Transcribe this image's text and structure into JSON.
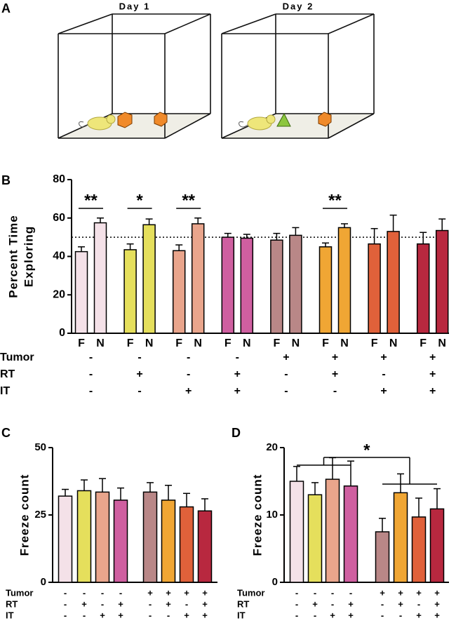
{
  "panel_labels": [
    "A",
    "B",
    "C",
    "D"
  ],
  "diagram": {
    "day_labels": [
      "Day 1",
      "Day 2"
    ]
  },
  "chart_data": [
    {
      "type": "bar",
      "ylabel": [
        "Percent Time",
        "Exploring"
      ],
      "categories": [
        "F",
        "N",
        "F",
        "N",
        "F",
        "N",
        "F",
        "N",
        "F",
        "N",
        "F",
        "N",
        "F",
        "N",
        "F",
        "N"
      ],
      "values": [
        42.5,
        57.5,
        43.5,
        56.5,
        43,
        57,
        50,
        49.5,
        48.5,
        51,
        45,
        55,
        46.5,
        53,
        46.5,
        53.5
      ],
      "errors": [
        2.5,
        2.5,
        3,
        3,
        3,
        3,
        2,
        2,
        3.5,
        4,
        2,
        2,
        8,
        8.5,
        6,
        6
      ],
      "colors": [
        "#f4e1e8",
        "#f4e1e8",
        "#e5df5c",
        "#e5df5c",
        "#e9a58c",
        "#e9a58c",
        "#cf5fa0",
        "#cf5fa0",
        "#b98787",
        "#b98787",
        "#f0a634",
        "#f0a634",
        "#e0613a",
        "#e0613a",
        "#b8283f",
        "#b8283f"
      ],
      "ylim": [
        0,
        80
      ],
      "yticks": [
        0,
        20,
        40,
        60,
        80
      ],
      "reference_line": 50,
      "annotations": [
        "**",
        "*",
        "**",
        null,
        null,
        "**",
        null,
        null
      ],
      "conditions": [
        {
          "name": "Tumor",
          "values": [
            "-",
            "-",
            "-",
            "-",
            "+",
            "+",
            "+",
            "+"
          ]
        },
        {
          "name": "RT",
          "values": [
            "-",
            "+",
            "-",
            "+",
            "-",
            "+",
            "-",
            "+"
          ]
        },
        {
          "name": "IT",
          "values": [
            "-",
            "-",
            "+",
            "+",
            "-",
            "-",
            "+",
            "+"
          ]
        }
      ]
    },
    {
      "type": "bar",
      "ylabel": [
        "Freeze count"
      ],
      "categories": [
        null,
        null,
        null,
        null,
        null,
        null,
        null,
        null
      ],
      "values": [
        32,
        34,
        33.5,
        30.5,
        33.5,
        30.5,
        28,
        26.5
      ],
      "errors": [
        2.5,
        4,
        5,
        4.5,
        3.5,
        5.5,
        5,
        4.5
      ],
      "colors": [
        "#f4e1e8",
        "#e5df5c",
        "#e9a58c",
        "#cf5fa0",
        "#b98787",
        "#f0a634",
        "#e0613a",
        "#b8283f"
      ],
      "ylim": [
        0,
        50
      ],
      "yticks": [
        0,
        25,
        50
      ],
      "conditions": [
        {
          "name": "Tumor",
          "values": [
            "-",
            "-",
            "-",
            "-",
            "+",
            "+",
            "+",
            "+"
          ]
        },
        {
          "name": "RT",
          "values": [
            "-",
            "+",
            "-",
            "+",
            "-",
            "+",
            "-",
            "+"
          ]
        },
        {
          "name": "IT",
          "values": [
            "-",
            "-",
            "+",
            "+",
            "-",
            "-",
            "+",
            "+"
          ]
        }
      ]
    },
    {
      "type": "bar",
      "ylabel": [
        "Freeze count"
      ],
      "categories": [
        null,
        null,
        null,
        null,
        null,
        null,
        null,
        null
      ],
      "values": [
        15,
        13,
        15.3,
        14.3,
        7.5,
        13.3,
        9.7,
        10.9
      ],
      "errors": [
        2.2,
        1.8,
        3.2,
        3.7,
        2,
        2.8,
        2.8,
        3
      ],
      "colors": [
        "#f4e1e8",
        "#e5df5c",
        "#e9a58c",
        "#cf5fa0",
        "#b98787",
        "#f0a634",
        "#e0613a",
        "#b8283f"
      ],
      "ylim": [
        0,
        20
      ],
      "yticks": [
        0,
        10,
        20
      ],
      "significance": "*",
      "conditions": [
        {
          "name": "Tumor",
          "values": [
            "-",
            "-",
            "-",
            "-",
            "+",
            "+",
            "+",
            "+"
          ]
        },
        {
          "name": "RT",
          "values": [
            "-",
            "+",
            "-",
            "+",
            "-",
            "+",
            "-",
            "+"
          ]
        },
        {
          "name": "IT",
          "values": [
            "-",
            "-",
            "+",
            "+",
            "-",
            "-",
            "+",
            "+"
          ]
        }
      ]
    }
  ]
}
